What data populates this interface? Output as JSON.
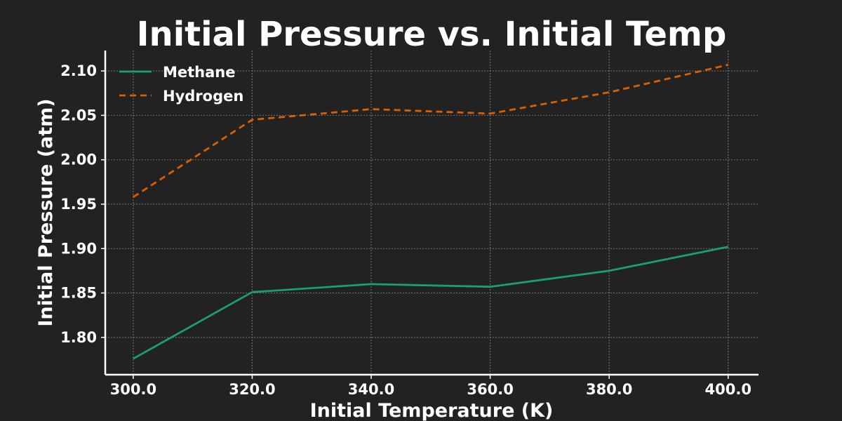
{
  "chart_data": {
    "type": "line",
    "title": "Initial Pressure vs. Initial Temp",
    "xlabel": "Initial Temperature (K)",
    "ylabel": "Initial Pressure (atm)",
    "x": [
      300.0,
      320.0,
      340.0,
      360.0,
      380.0,
      400.0
    ],
    "x_tick_labels": [
      "300.0",
      "320.0",
      "340.0",
      "360.0",
      "380.0",
      "400.0"
    ],
    "y_tick_values": [
      1.8,
      1.85,
      1.9,
      1.95,
      2.0,
      2.05,
      2.1
    ],
    "y_tick_labels": [
      "1.80",
      "1.85",
      "1.90",
      "1.95",
      "2.00",
      "2.05",
      "2.10"
    ],
    "xlim": [
      295.3,
      405.1
    ],
    "ylim": [
      1.758,
      2.123
    ],
    "grid": true,
    "legend_position": "top-left",
    "series": [
      {
        "name": "Methane",
        "values": [
          1.776,
          1.851,
          1.86,
          1.857,
          1.875,
          1.902
        ],
        "color": "#1b9e77",
        "style": "solid"
      },
      {
        "name": "Hydrogen",
        "values": [
          1.958,
          2.045,
          2.057,
          2.052,
          2.076,
          2.107
        ],
        "color": "#d95f02",
        "style": "dashed"
      }
    ]
  }
}
